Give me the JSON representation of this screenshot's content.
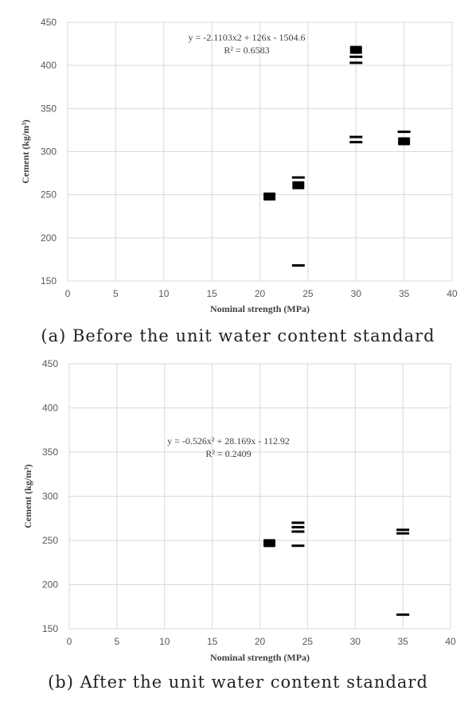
{
  "chart_data": [
    {
      "type": "scatter",
      "caption": "(a) Before the unit water content standard",
      "xlabel": "Nominal strength (MPa)",
      "ylabel": "Cement (kg/m³)",
      "xlim": [
        0,
        40
      ],
      "ylim": [
        150,
        450
      ],
      "xticks": [
        0,
        5,
        10,
        15,
        20,
        25,
        30,
        35,
        40
      ],
      "yticks": [
        150,
        200,
        250,
        300,
        350,
        400,
        450
      ],
      "grid": "vertical and horizontal",
      "equation": "y = -2.1103x2 + 126x - 1504.6",
      "r2": "R² = 0.6583",
      "points": [
        {
          "x": 21,
          "y": 248,
          "weight": "heavy"
        },
        {
          "x": 24,
          "y": 168,
          "weight": "thin"
        },
        {
          "x": 24,
          "y": 261,
          "weight": "heavy"
        },
        {
          "x": 24,
          "y": 270,
          "weight": "thin"
        },
        {
          "x": 30,
          "y": 311,
          "weight": "thin"
        },
        {
          "x": 30,
          "y": 317,
          "weight": "thin"
        },
        {
          "x": 30,
          "y": 403,
          "weight": "thin"
        },
        {
          "x": 30,
          "y": 410,
          "weight": "thin"
        },
        {
          "x": 30,
          "y": 418,
          "weight": "heavy"
        },
        {
          "x": 35,
          "y": 312,
          "weight": "heavy"
        },
        {
          "x": 35,
          "y": 323,
          "weight": "thin"
        }
      ]
    },
    {
      "type": "scatter",
      "caption": "(b) After the unit water content standard",
      "xlabel": "Nominal strength (MPa)",
      "ylabel": "Cement (kg/m³)",
      "xlim": [
        0,
        40
      ],
      "ylim": [
        150,
        450
      ],
      "xticks": [
        0,
        5,
        10,
        15,
        20,
        25,
        30,
        35,
        40
      ],
      "yticks": [
        150,
        200,
        250,
        300,
        350,
        400,
        450
      ],
      "grid": "vertical and horizontal",
      "equation": "y = -0.526x² + 28.169x - 112.92",
      "r2": "R² = 0.2409",
      "points": [
        {
          "x": 21,
          "y": 247,
          "weight": "heavy"
        },
        {
          "x": 24,
          "y": 244,
          "weight": "thin"
        },
        {
          "x": 24,
          "y": 260,
          "weight": "thin"
        },
        {
          "x": 24,
          "y": 265,
          "weight": "thin"
        },
        {
          "x": 24,
          "y": 270,
          "weight": "thin"
        },
        {
          "x": 35,
          "y": 166,
          "weight": "thin"
        },
        {
          "x": 35,
          "y": 258,
          "weight": "thin"
        },
        {
          "x": 35,
          "y": 262,
          "weight": "thin"
        }
      ]
    }
  ]
}
